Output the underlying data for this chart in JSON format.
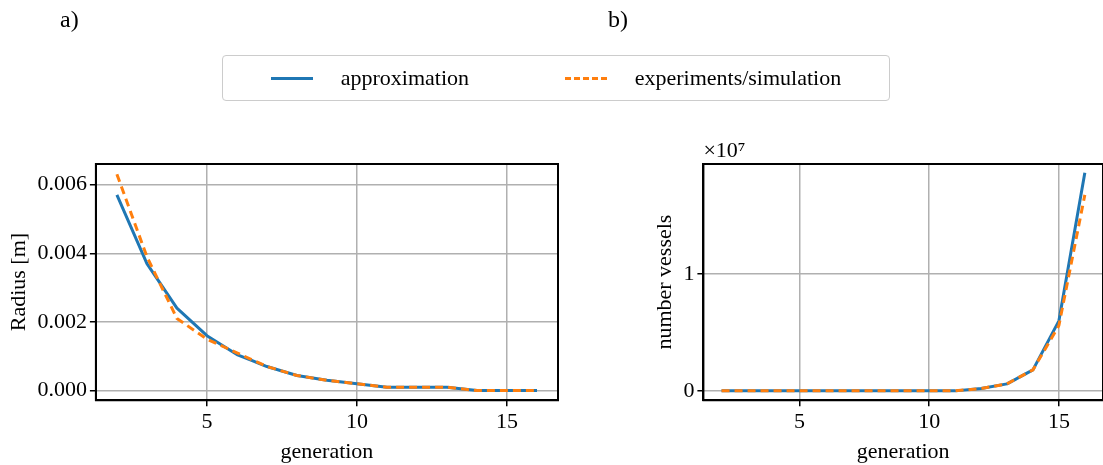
{
  "chart_data": [
    {
      "type": "line",
      "annotations": [
        "a)"
      ],
      "xlabel": "generation",
      "ylabel": "Radius [m]",
      "x": [
        2,
        3,
        4,
        5,
        6,
        7,
        8,
        9,
        10,
        11,
        12,
        13,
        14,
        15,
        16
      ],
      "series": [
        {
          "name": "approximation",
          "color": "#1f77b4",
          "line_style": "solid",
          "values": [
            0.0057,
            0.0037,
            0.0024,
            0.0016,
            0.00105,
            0.0007,
            0.00044,
            0.0003,
            0.0002,
            0.0001,
            0.0001,
            0.0001,
            0,
            0,
            0
          ]
        },
        {
          "name": "experiments/simulation",
          "color": "#ff7f0e",
          "line_style": "dashed",
          "values": [
            0.0063,
            0.0039,
            0.0021,
            0.0015,
            0.0011,
            0.0007,
            0.00044,
            0.0003,
            0.0002,
            0.0001,
            0.0001,
            0.0001,
            0,
            0,
            0
          ]
        }
      ],
      "xlim": [
        1.3,
        16.7
      ],
      "xticks": [
        5,
        10,
        15
      ],
      "ylim": [
        -0.00028,
        0.0066
      ],
      "yticks": [
        {
          "value": 0,
          "label": "0.000"
        },
        {
          "value": 0.002,
          "label": "0.002"
        },
        {
          "value": 0.004,
          "label": "0.004"
        },
        {
          "value": 0.006,
          "label": "0.006"
        }
      ],
      "grid": true,
      "legend": "top",
      "marker": "none"
    },
    {
      "type": "line",
      "annotations": [
        "b)",
        "×10⁷"
      ],
      "xlabel": "generation",
      "ylabel": "number vessels",
      "x": [
        2,
        3,
        4,
        5,
        6,
        7,
        8,
        9,
        10,
        11,
        12,
        13,
        14,
        15,
        16
      ],
      "series": [
        {
          "color": "#1f77b4",
          "line_style": "solid",
          "values": [
            0,
            0,
            0,
            0,
            0,
            0,
            0,
            0,
            0,
            0,
            0.02,
            0.06,
            0.18,
            0.6,
            1.87
          ]
        },
        {
          "color": "#ff7f0e",
          "line_style": "dashed",
          "values": [
            0,
            0,
            0,
            0,
            0,
            0,
            0,
            0,
            0,
            0,
            0.02,
            0.06,
            0.18,
            0.56,
            1.68
          ]
        }
      ],
      "xlim": [
        1.3,
        16.7
      ],
      "xticks": [
        5,
        10,
        15
      ],
      "ylim": [
        -0.08,
        1.945
      ],
      "yticks": [
        0,
        1
      ],
      "grid": true,
      "marker": "none"
    }
  ]
}
